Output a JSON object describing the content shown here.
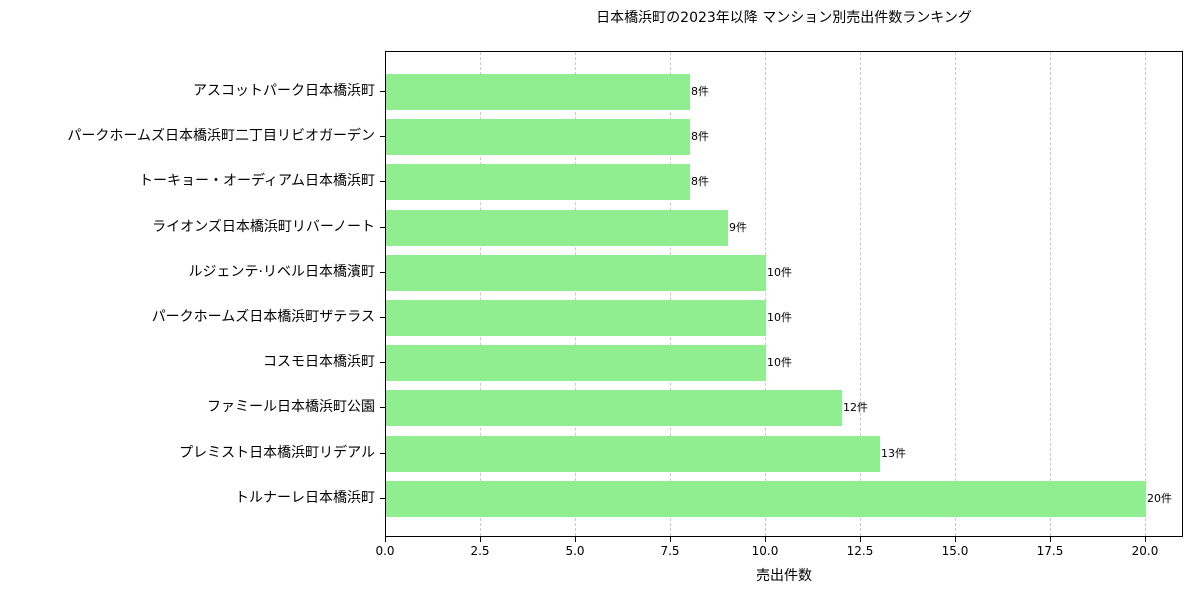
{
  "chart_data": {
    "type": "bar",
    "orientation": "horizontal",
    "title": "日本橋浜町の2023年以降 マンション別売出件数ランキング",
    "xlabel": "売出件数",
    "ylabel": "",
    "xlim": [
      0,
      21
    ],
    "xticks": [
      0.0,
      2.5,
      5.0,
      7.5,
      10.0,
      12.5,
      15.0,
      17.5,
      20.0
    ],
    "xtick_labels": [
      "0.0",
      "2.5",
      "5.0",
      "7.5",
      "10.0",
      "12.5",
      "15.0",
      "17.5",
      "20.0"
    ],
    "grid": {
      "x": true,
      "y": false,
      "style": "dashed"
    },
    "bar_color": "#90EE90",
    "categories": [
      "アスコットパーク日本橋浜町",
      "パークホームズ日本橋浜町二丁目リビオガーデン",
      "トーキョー・オーディアム日本橋浜町",
      "ライオンズ日本橋浜町リバーノート",
      "ルジェンテ·リベル日本橋濱町",
      "パークホームズ日本橋浜町ザテラス",
      "コスモ日本橋浜町",
      "ファミール日本橋浜町公園",
      "プレミスト日本橋浜町リデアル",
      "トルナーレ日本橋浜町"
    ],
    "values": [
      8,
      8,
      8,
      9,
      10,
      10,
      10,
      12,
      13,
      20
    ],
    "value_labels": [
      "8件",
      "8件",
      "8件",
      "9件",
      "10件",
      "10件",
      "10件",
      "12件",
      "13件",
      "20件"
    ]
  }
}
